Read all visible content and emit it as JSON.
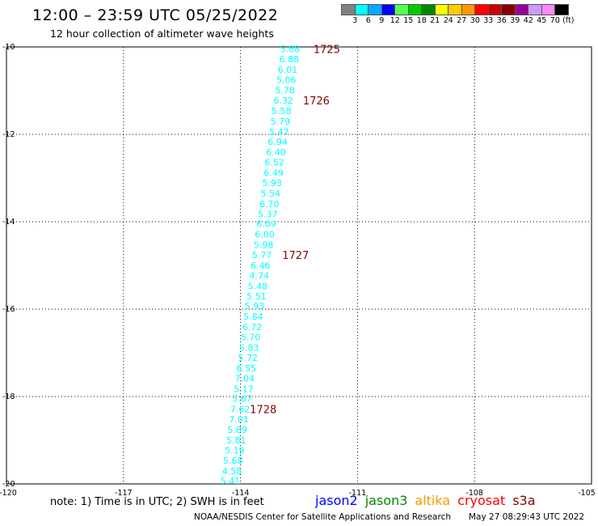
{
  "header": {
    "title": "12:00 – 23:59 UTC 05/25/2022",
    "subtitle": "12 hour collection of altimeter wave heights"
  },
  "legend": {
    "colors": [
      "#808080",
      "#00ffff",
      "#00aaff",
      "#0000ff",
      "#55ff55",
      "#00cc00",
      "#008800",
      "#ffff00",
      "#ffcc00",
      "#ff9900",
      "#ff0000",
      "#cc0000",
      "#880000",
      "#990099",
      "#cc99ff",
      "#ff88ff",
      "#000000"
    ],
    "labels": [
      "3",
      "6",
      "9",
      "12",
      "15",
      "18",
      "21",
      "24",
      "27",
      "30",
      "33",
      "36",
      "39",
      "42",
      "45",
      "70",
      "(ft)"
    ]
  },
  "chart_data": {
    "type": "scatter",
    "title": "12 hour collection of altimeter wave heights",
    "xlim": [
      -120,
      -105
    ],
    "ylim": [
      -20,
      -10
    ],
    "x_ticks": [
      "-120",
      "-117",
      "-114",
      "-111",
      "-108",
      "-105"
    ],
    "y_ticks": [
      "-10",
      "-12",
      "-14",
      "-16",
      "-18",
      "-20"
    ],
    "grid": true,
    "point_color": "#00ffff",
    "track_label_color": "#8b0000",
    "points": [
      {
        "lon": -112.73,
        "lat": -10.05,
        "value": "5.88"
      },
      {
        "lon": -112.75,
        "lat": -10.28,
        "value": "6.88"
      },
      {
        "lon": -112.79,
        "lat": -10.52,
        "value": "6.01"
      },
      {
        "lon": -112.83,
        "lat": -10.75,
        "value": "5.06"
      },
      {
        "lon": -112.86,
        "lat": -10.99,
        "value": "5.78"
      },
      {
        "lon": -112.9,
        "lat": -11.22,
        "value": "6.32"
      },
      {
        "lon": -112.95,
        "lat": -11.46,
        "value": "5.58"
      },
      {
        "lon": -112.98,
        "lat": -11.7,
        "value": "5.79"
      },
      {
        "lon": -113.01,
        "lat": -11.94,
        "value": "5.47"
      },
      {
        "lon": -113.05,
        "lat": -12.17,
        "value": "6.94"
      },
      {
        "lon": -113.09,
        "lat": -12.41,
        "value": "6.40"
      },
      {
        "lon": -113.13,
        "lat": -12.64,
        "value": "6.52"
      },
      {
        "lon": -113.15,
        "lat": -12.88,
        "value": "6.49"
      },
      {
        "lon": -113.19,
        "lat": -13.11,
        "value": "5.93"
      },
      {
        "lon": -113.23,
        "lat": -13.35,
        "value": "5.54"
      },
      {
        "lon": -113.26,
        "lat": -13.59,
        "value": "6.70"
      },
      {
        "lon": -113.3,
        "lat": -13.82,
        "value": "5.37"
      },
      {
        "lon": -113.34,
        "lat": -14.05,
        "value": "6.09"
      },
      {
        "lon": -113.38,
        "lat": -14.29,
        "value": "6.00"
      },
      {
        "lon": -113.41,
        "lat": -14.53,
        "value": "5.98"
      },
      {
        "lon": -113.45,
        "lat": -14.76,
        "value": "5.77"
      },
      {
        "lon": -113.49,
        "lat": -15.0,
        "value": "6.46"
      },
      {
        "lon": -113.52,
        "lat": -15.23,
        "value": "4.74"
      },
      {
        "lon": -113.56,
        "lat": -15.47,
        "value": "5.48"
      },
      {
        "lon": -113.59,
        "lat": -15.7,
        "value": "5.51"
      },
      {
        "lon": -113.64,
        "lat": -15.93,
        "value": "5.93"
      },
      {
        "lon": -113.67,
        "lat": -16.17,
        "value": "5.84"
      },
      {
        "lon": -113.7,
        "lat": -16.41,
        "value": "6.72"
      },
      {
        "lon": -113.74,
        "lat": -16.64,
        "value": "5.70"
      },
      {
        "lon": -113.78,
        "lat": -16.88,
        "value": "5.83"
      },
      {
        "lon": -113.81,
        "lat": -17.11,
        "value": "5.72"
      },
      {
        "lon": -113.85,
        "lat": -17.35,
        "value": "6.55"
      },
      {
        "lon": -113.89,
        "lat": -17.58,
        "value": "7.04"
      },
      {
        "lon": -113.92,
        "lat": -17.82,
        "value": "5.17"
      },
      {
        "lon": -113.96,
        "lat": -18.05,
        "value": "5.67"
      },
      {
        "lon": -114.01,
        "lat": -18.29,
        "value": "7.62"
      },
      {
        "lon": -114.04,
        "lat": -18.52,
        "value": "7.01"
      },
      {
        "lon": -114.08,
        "lat": -18.76,
        "value": "5.89"
      },
      {
        "lon": -114.11,
        "lat": -19.0,
        "value": "5.81"
      },
      {
        "lon": -114.15,
        "lat": -19.23,
        "value": "5.19"
      },
      {
        "lon": -114.19,
        "lat": -19.46,
        "value": "5.68"
      },
      {
        "lon": -114.22,
        "lat": -19.7,
        "value": "4.58"
      },
      {
        "lon": -114.26,
        "lat": -19.93,
        "value": "5.41"
      }
    ],
    "track_labels": [
      {
        "text": "1725",
        "lon": -112.13,
        "lat": -10.05
      },
      {
        "text": "1726",
        "lon": -112.4,
        "lat": -11.22
      },
      {
        "text": "1727",
        "lon": -112.93,
        "lat": -14.76
      },
      {
        "text": "1728",
        "lon": -113.76,
        "lat": -18.29
      }
    ]
  },
  "footer": {
    "note": "note:  1) Time is in UTC;  2) SWH is in feet",
    "satellites": [
      {
        "name": "jason2",
        "color": "#0000ff"
      },
      {
        "name": "jason3",
        "color": "#008800"
      },
      {
        "name": "altika",
        "color": "#ff9900"
      },
      {
        "name": "cryosat",
        "color": "#ff0000"
      },
      {
        "name": "s3a",
        "color": "#880000"
      }
    ],
    "credit": "NOAA/NESDIS Center for Satellite Applications and Research",
    "timestamp": "May 27 08:29:43 UTC 2022"
  }
}
